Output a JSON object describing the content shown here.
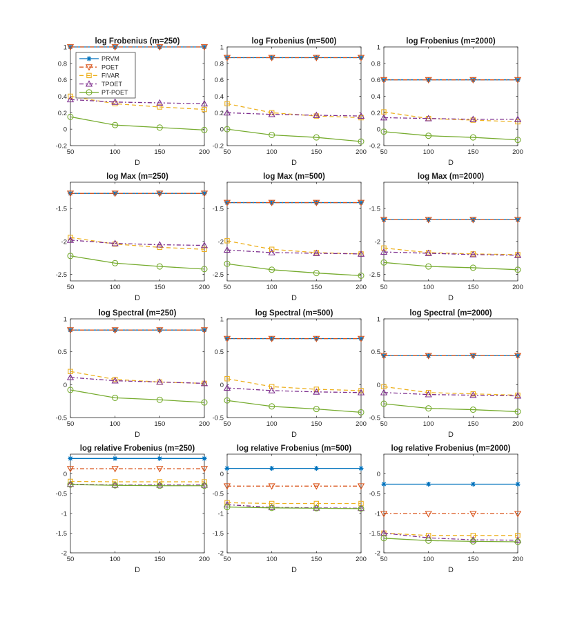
{
  "styles": {
    "PRVM": {
      "color": "#0072BD",
      "dash": "",
      "marker": "asterisk"
    },
    "POET": {
      "color": "#D95319",
      "dash": "6,3,2,3",
      "marker": "tri-down"
    },
    "FIVAR": {
      "color": "#EDB120",
      "dash": "6,4",
      "marker": "square"
    },
    "TPOET": {
      "color": "#7E2F8E",
      "dash": "6,3,2,3",
      "marker": "tri-up"
    },
    "PT-POET": {
      "color": "#77AC30",
      "dash": "",
      "marker": "circle"
    }
  },
  "legend": [
    "PRVM",
    "POET",
    "FIVAR",
    "TPOET",
    "PT-POET"
  ],
  "chart_data": [
    {
      "type": "line",
      "title": "log Frobenius (m=250)",
      "xlabel": "D",
      "x": [
        50,
        100,
        150,
        200
      ],
      "xlim": [
        50,
        200
      ],
      "ylim": [
        -0.2,
        1
      ],
      "yticks": [
        "-0.2",
        "0",
        "0.2",
        "0.4",
        "0.6",
        "0.8",
        "1"
      ],
      "show_legend": true,
      "series": [
        {
          "name": "PRVM",
          "values": [
            1.0,
            1.0,
            1.0,
            1.0
          ]
        },
        {
          "name": "POET",
          "values": [
            1.0,
            1.0,
            1.0,
            1.0
          ]
        },
        {
          "name": "FIVAR",
          "values": [
            0.4,
            0.31,
            0.27,
            0.24
          ]
        },
        {
          "name": "TPOET",
          "values": [
            0.36,
            0.33,
            0.32,
            0.31
          ]
        },
        {
          "name": "PT-POET",
          "values": [
            0.15,
            0.05,
            0.02,
            -0.01
          ]
        }
      ]
    },
    {
      "type": "line",
      "title": "log Frobenius (m=500)",
      "xlabel": "D",
      "x": [
        50,
        100,
        150,
        200
      ],
      "xlim": [
        50,
        200
      ],
      "ylim": [
        -0.2,
        1
      ],
      "yticks": [
        "-0.2",
        "0",
        "0.2",
        "0.4",
        "0.6",
        "0.8",
        "1"
      ],
      "series": [
        {
          "name": "PRVM",
          "values": [
            0.87,
            0.87,
            0.87,
            0.87
          ]
        },
        {
          "name": "POET",
          "values": [
            0.87,
            0.87,
            0.87,
            0.87
          ]
        },
        {
          "name": "FIVAR",
          "values": [
            0.31,
            0.2,
            0.16,
            0.14
          ]
        },
        {
          "name": "TPOET",
          "values": [
            0.2,
            0.18,
            0.17,
            0.16
          ]
        },
        {
          "name": "PT-POET",
          "values": [
            0.0,
            -0.07,
            -0.1,
            -0.15
          ]
        }
      ]
    },
    {
      "type": "line",
      "title": "log Frobenius (m=2000)",
      "xlabel": "D",
      "x": [
        50,
        100,
        150,
        200
      ],
      "xlim": [
        50,
        200
      ],
      "ylim": [
        -0.2,
        1
      ],
      "yticks": [
        "-0.2",
        "0",
        "0.2",
        "0.4",
        "0.6",
        "0.8",
        "1"
      ],
      "series": [
        {
          "name": "PRVM",
          "values": [
            0.6,
            0.6,
            0.6,
            0.6
          ]
        },
        {
          "name": "POET",
          "values": [
            0.6,
            0.6,
            0.6,
            0.6
          ]
        },
        {
          "name": "FIVAR",
          "values": [
            0.21,
            0.13,
            0.11,
            0.09
          ]
        },
        {
          "name": "TPOET",
          "values": [
            0.14,
            0.13,
            0.12,
            0.12
          ]
        },
        {
          "name": "PT-POET",
          "values": [
            -0.03,
            -0.08,
            -0.1,
            -0.13
          ]
        }
      ]
    },
    {
      "type": "line",
      "title": "log Max (m=250)",
      "xlabel": "D",
      "x": [
        50,
        100,
        150,
        200
      ],
      "xlim": [
        50,
        200
      ],
      "ylim": [
        -2.6,
        -1.1
      ],
      "yticks": [
        "-1.5",
        "-2",
        "-2.5"
      ],
      "ytickvals": [
        -1.5,
        -2,
        -2.5
      ],
      "series": [
        {
          "name": "PRVM",
          "values": [
            -1.27,
            -1.27,
            -1.27,
            -1.27
          ]
        },
        {
          "name": "POET",
          "values": [
            -1.27,
            -1.27,
            -1.27,
            -1.27
          ]
        },
        {
          "name": "FIVAR",
          "values": [
            -1.94,
            -2.04,
            -2.09,
            -2.12
          ]
        },
        {
          "name": "TPOET",
          "values": [
            -1.98,
            -2.03,
            -2.05,
            -2.06
          ]
        },
        {
          "name": "PT-POET",
          "values": [
            -2.22,
            -2.33,
            -2.38,
            -2.42
          ]
        }
      ]
    },
    {
      "type": "line",
      "title": "log Max (m=500)",
      "xlabel": "D",
      "x": [
        50,
        100,
        150,
        200
      ],
      "xlim": [
        50,
        200
      ],
      "ylim": [
        -2.6,
        -1.1
      ],
      "yticks": [
        "-1.5",
        "-2",
        "-2.5"
      ],
      "ytickvals": [
        -1.5,
        -2,
        -2.5
      ],
      "series": [
        {
          "name": "PRVM",
          "values": [
            -1.41,
            -1.41,
            -1.41,
            -1.41
          ]
        },
        {
          "name": "POET",
          "values": [
            -1.41,
            -1.41,
            -1.41,
            -1.41
          ]
        },
        {
          "name": "FIVAR",
          "values": [
            -1.99,
            -2.12,
            -2.17,
            -2.19
          ]
        },
        {
          "name": "TPOET",
          "values": [
            -2.13,
            -2.17,
            -2.18,
            -2.19
          ]
        },
        {
          "name": "PT-POET",
          "values": [
            -2.34,
            -2.43,
            -2.48,
            -2.52
          ]
        }
      ]
    },
    {
      "type": "line",
      "title": "log Max (m=2000)",
      "xlabel": "D",
      "x": [
        50,
        100,
        150,
        200
      ],
      "xlim": [
        50,
        200
      ],
      "ylim": [
        -2.6,
        -1.1
      ],
      "yticks": [
        "-1.5",
        "-2",
        "-2.5"
      ],
      "ytickvals": [
        -1.5,
        -2,
        -2.5
      ],
      "series": [
        {
          "name": "PRVM",
          "values": [
            -1.67,
            -1.67,
            -1.67,
            -1.67
          ]
        },
        {
          "name": "POET",
          "values": [
            -1.67,
            -1.67,
            -1.67,
            -1.67
          ]
        },
        {
          "name": "FIVAR",
          "values": [
            -2.1,
            -2.17,
            -2.19,
            -2.2
          ]
        },
        {
          "name": "TPOET",
          "values": [
            -2.16,
            -2.18,
            -2.2,
            -2.21
          ]
        },
        {
          "name": "PT-POET",
          "values": [
            -2.32,
            -2.38,
            -2.4,
            -2.43
          ]
        }
      ]
    },
    {
      "type": "line",
      "title": "log Spectral (m=250)",
      "xlabel": "D",
      "x": [
        50,
        100,
        150,
        200
      ],
      "xlim": [
        50,
        200
      ],
      "ylim": [
        -0.5,
        1
      ],
      "yticks": [
        "-0.5",
        "0",
        "0.5",
        "1"
      ],
      "ytickvals": [
        -0.5,
        0,
        0.5,
        1
      ],
      "series": [
        {
          "name": "PRVM",
          "values": [
            0.83,
            0.83,
            0.83,
            0.83
          ]
        },
        {
          "name": "POET",
          "values": [
            0.83,
            0.83,
            0.83,
            0.83
          ]
        },
        {
          "name": "FIVAR",
          "values": [
            0.2,
            0.08,
            0.04,
            0.02
          ]
        },
        {
          "name": "TPOET",
          "values": [
            0.11,
            0.06,
            0.04,
            0.02
          ]
        },
        {
          "name": "PT-POET",
          "values": [
            -0.08,
            -0.2,
            -0.23,
            -0.27
          ]
        }
      ]
    },
    {
      "type": "line",
      "title": "log Spectral (m=500)",
      "xlabel": "D",
      "x": [
        50,
        100,
        150,
        200
      ],
      "xlim": [
        50,
        200
      ],
      "ylim": [
        -0.5,
        1
      ],
      "yticks": [
        "-0.5",
        "0",
        "0.5",
        "1"
      ],
      "ytickvals": [
        -0.5,
        0,
        0.5,
        1
      ],
      "series": [
        {
          "name": "PRVM",
          "values": [
            0.7,
            0.7,
            0.7,
            0.7
          ]
        },
        {
          "name": "POET",
          "values": [
            0.7,
            0.7,
            0.7,
            0.7
          ]
        },
        {
          "name": "FIVAR",
          "values": [
            0.09,
            -0.03,
            -0.07,
            -0.09
          ]
        },
        {
          "name": "TPOET",
          "values": [
            -0.05,
            -0.09,
            -0.11,
            -0.12
          ]
        },
        {
          "name": "PT-POET",
          "values": [
            -0.24,
            -0.33,
            -0.37,
            -0.42
          ]
        }
      ]
    },
    {
      "type": "line",
      "title": "log Spectral (m=2000)",
      "xlabel": "D",
      "x": [
        50,
        100,
        150,
        200
      ],
      "xlim": [
        50,
        200
      ],
      "ylim": [
        -0.5,
        1
      ],
      "yticks": [
        "-0.5",
        "0",
        "0.5",
        "1"
      ],
      "ytickvals": [
        -0.5,
        0,
        0.5,
        1
      ],
      "series": [
        {
          "name": "PRVM",
          "values": [
            0.44,
            0.44,
            0.44,
            0.44
          ]
        },
        {
          "name": "POET",
          "values": [
            0.44,
            0.44,
            0.44,
            0.44
          ]
        },
        {
          "name": "FIVAR",
          "values": [
            -0.03,
            -0.12,
            -0.14,
            -0.16
          ]
        },
        {
          "name": "TPOET",
          "values": [
            -0.12,
            -0.15,
            -0.16,
            -0.17
          ]
        },
        {
          "name": "PT-POET",
          "values": [
            -0.29,
            -0.36,
            -0.38,
            -0.41
          ]
        }
      ]
    },
    {
      "type": "line",
      "title": "log relative Frobenius (m=250)",
      "xlabel": "D",
      "x": [
        50,
        100,
        150,
        200
      ],
      "xlim": [
        50,
        200
      ],
      "ylim": [
        -2,
        0.5
      ],
      "yticks": [
        "-2",
        "-1.5",
        "-1",
        "-0.5",
        "0"
      ],
      "ytickvals": [
        -2,
        -1.5,
        -1,
        -0.5,
        0
      ],
      "series": [
        {
          "name": "PRVM",
          "values": [
            0.39,
            0.39,
            0.39,
            0.39
          ]
        },
        {
          "name": "POET",
          "values": [
            0.13,
            0.13,
            0.13,
            0.13
          ]
        },
        {
          "name": "FIVAR",
          "values": [
            -0.19,
            -0.2,
            -0.2,
            -0.2
          ]
        },
        {
          "name": "TPOET",
          "values": [
            -0.26,
            -0.28,
            -0.28,
            -0.28
          ]
        },
        {
          "name": "PT-POET",
          "values": [
            -0.27,
            -0.29,
            -0.3,
            -0.3
          ]
        }
      ]
    },
    {
      "type": "line",
      "title": "log relative Frobenius (m=500)",
      "xlabel": "D",
      "x": [
        50,
        100,
        150,
        200
      ],
      "xlim": [
        50,
        200
      ],
      "ylim": [
        -2,
        0.5
      ],
      "yticks": [
        "-2",
        "-1.5",
        "-1",
        "-0.5",
        "0"
      ],
      "ytickvals": [
        -2,
        -1.5,
        -1,
        -0.5,
        0
      ],
      "series": [
        {
          "name": "PRVM",
          "values": [
            0.14,
            0.14,
            0.14,
            0.14
          ]
        },
        {
          "name": "POET",
          "values": [
            -0.31,
            -0.31,
            -0.31,
            -0.31
          ]
        },
        {
          "name": "FIVAR",
          "values": [
            -0.73,
            -0.75,
            -0.75,
            -0.75
          ]
        },
        {
          "name": "TPOET",
          "values": [
            -0.78,
            -0.85,
            -0.86,
            -0.87
          ]
        },
        {
          "name": "PT-POET",
          "values": [
            -0.84,
            -0.86,
            -0.87,
            -0.88
          ]
        }
      ]
    },
    {
      "type": "line",
      "title": "log relative Frobenius (m=2000)",
      "xlabel": "D",
      "x": [
        50,
        100,
        150,
        200
      ],
      "xlim": [
        50,
        200
      ],
      "ylim": [
        -2,
        0.5
      ],
      "yticks": [
        "-2",
        "-1.5",
        "-1",
        "-0.5",
        "0"
      ],
      "ytickvals": [
        -2,
        -1.5,
        -1,
        -0.5,
        0
      ],
      "series": [
        {
          "name": "PRVM",
          "values": [
            -0.26,
            -0.26,
            -0.26,
            -0.26
          ]
        },
        {
          "name": "POET",
          "values": [
            -1.01,
            -1.01,
            -1.01,
            -1.01
          ]
        },
        {
          "name": "FIVAR",
          "values": [
            -1.5,
            -1.56,
            -1.56,
            -1.56
          ]
        },
        {
          "name": "TPOET",
          "values": [
            -1.5,
            -1.62,
            -1.67,
            -1.68
          ]
        },
        {
          "name": "PT-POET",
          "values": [
            -1.63,
            -1.69,
            -1.71,
            -1.72
          ]
        }
      ]
    }
  ]
}
